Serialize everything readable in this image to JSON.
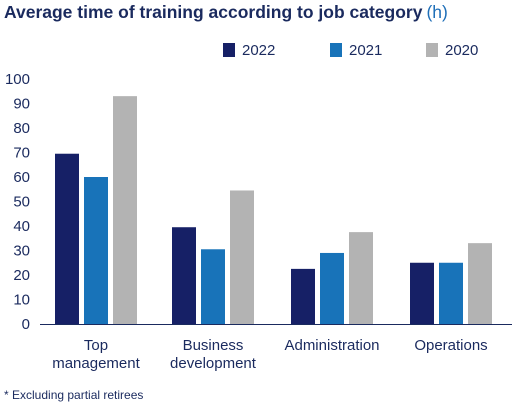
{
  "chart_data": {
    "type": "bar",
    "title": "Average time of training according to job category",
    "unit": "(h)",
    "categories": [
      [
        "Top",
        "management"
      ],
      [
        "Business",
        "development"
      ],
      [
        "Administration"
      ],
      [
        "Operations"
      ]
    ],
    "series": [
      {
        "name": "2022",
        "color": "#162066",
        "values": [
          69.5,
          39.5,
          22.5,
          25
        ]
      },
      {
        "name": "2021",
        "color": "#1873b9",
        "values": [
          60,
          30.5,
          29,
          25
        ]
      },
      {
        "name": "2020",
        "color": "#b3b3b3",
        "values": [
          93,
          54.5,
          37.5,
          33
        ]
      }
    ],
    "ylim": [
      0,
      100
    ],
    "yticks": [
      0,
      10,
      20,
      30,
      40,
      50,
      60,
      70,
      80,
      90,
      100
    ],
    "grid": false,
    "legend": "top-right"
  },
  "footnote": "* Excluding partial retirees"
}
